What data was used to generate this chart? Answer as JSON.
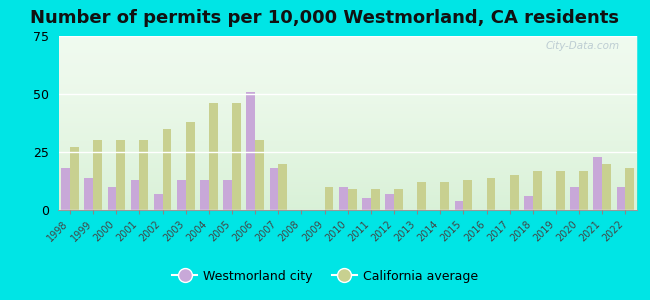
{
  "title": "Number of permits per 10,000 Westmorland, CA residents",
  "years": [
    1998,
    1999,
    2000,
    2001,
    2002,
    2003,
    2004,
    2005,
    2006,
    2007,
    2008,
    2009,
    2010,
    2011,
    2012,
    2013,
    2014,
    2015,
    2016,
    2017,
    2018,
    2019,
    2020,
    2021,
    2022
  ],
  "westmorland": [
    18,
    14,
    10,
    13,
    7,
    13,
    13,
    13,
    51,
    18,
    0,
    0,
    10,
    5,
    7,
    0,
    0,
    4,
    0,
    0,
    6,
    0,
    10,
    23,
    10
  ],
  "california": [
    27,
    30,
    30,
    30,
    35,
    38,
    46,
    46,
    30,
    20,
    0,
    10,
    9,
    9,
    9,
    12,
    12,
    13,
    14,
    15,
    17,
    17,
    17,
    20,
    18
  ],
  "westmorland_color": "#c8a8d8",
  "california_color": "#c8d090",
  "outer_bg": "#00e5e5",
  "plot_bg": "#e8f5e8",
  "ylim": [
    0,
    75
  ],
  "yticks": [
    0,
    25,
    50,
    75
  ],
  "title_fontsize": 13,
  "legend_labels": [
    "Westmorland city",
    "California average"
  ],
  "bar_width": 0.38
}
